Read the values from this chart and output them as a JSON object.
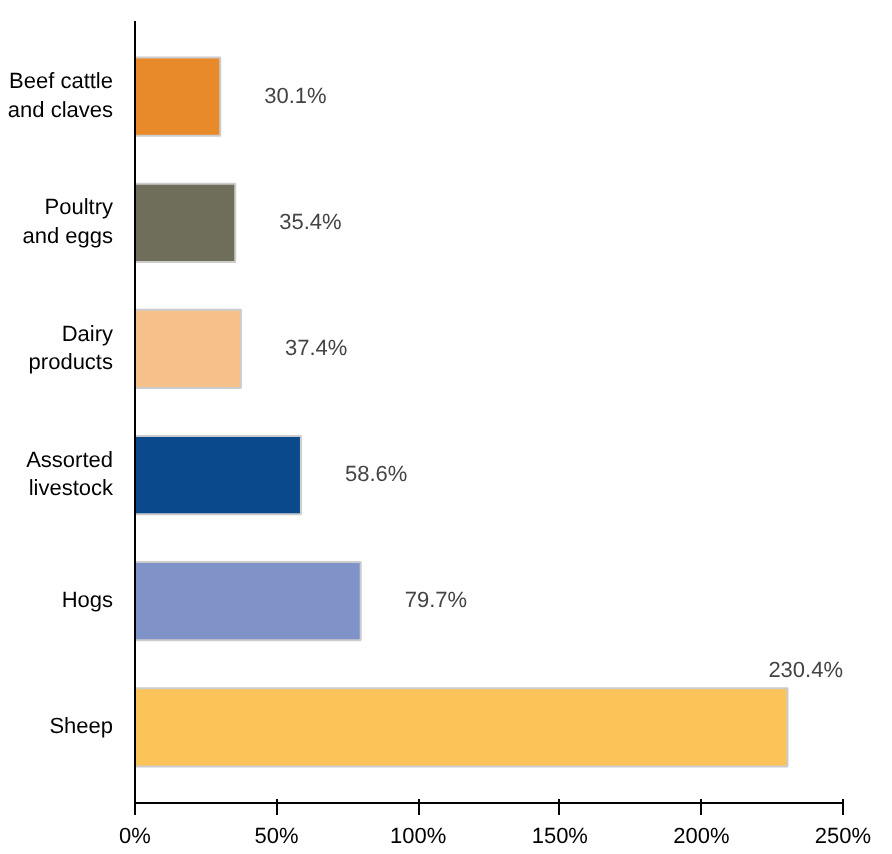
{
  "chart_data": {
    "type": "bar",
    "orientation": "horizontal",
    "categories": [
      "Beef cattle\nand claves",
      "Poultry\nand eggs",
      "Dairy\nproducts",
      "Assorted\nlivestock",
      "Hogs",
      "Sheep"
    ],
    "values": [
      30.1,
      35.4,
      37.4,
      58.6,
      79.7,
      230.4
    ],
    "colors": [
      "#e8892a",
      "#6e6e5a",
      "#f5c08a",
      "#0a4a8c",
      "#7f93c8",
      "#fcc358"
    ],
    "value_labels": [
      "30.1%",
      "35.4%",
      "37.4%",
      "58.6%",
      "79.7%",
      "230.4%"
    ],
    "xlim": [
      0,
      250
    ],
    "xticks": [
      {
        "value": 0,
        "label": "0%"
      },
      {
        "value": 50,
        "label": "50%"
      },
      {
        "value": 100,
        "label": "100%"
      },
      {
        "value": 150,
        "label": "150%"
      },
      {
        "value": 200,
        "label": "200%"
      },
      {
        "value": 250,
        "label": "250%"
      }
    ],
    "grid": false
  }
}
